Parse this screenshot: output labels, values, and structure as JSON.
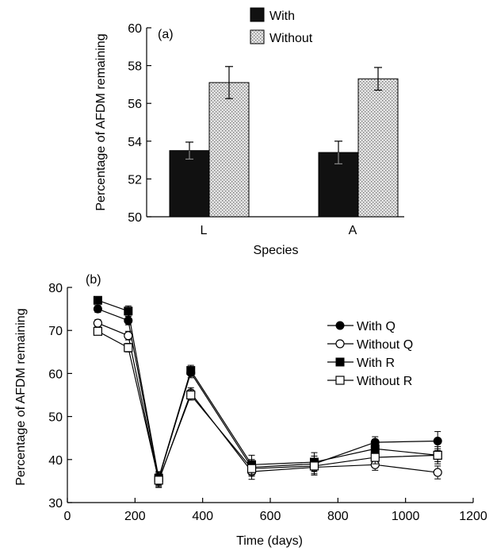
{
  "chart_data": [
    {
      "type": "bar",
      "panel_label": "(a)",
      "xlabel": "Species",
      "ylabel": "Percentage of AFDM remaining",
      "categories": [
        "L",
        "A"
      ],
      "ylim": [
        50,
        60
      ],
      "yticks": [
        50,
        52,
        54,
        56,
        58,
        60
      ],
      "legend_position": "top-center",
      "series": [
        {
          "name": "With",
          "values": [
            53.5,
            53.4
          ],
          "errors": [
            0.45,
            0.6
          ],
          "color": "#111111",
          "pattern": "solid"
        },
        {
          "name": "Without",
          "values": [
            57.1,
            57.3
          ],
          "errors": [
            0.85,
            0.6
          ],
          "color": "#d8d8d8",
          "pattern": "dotted"
        }
      ]
    },
    {
      "type": "line",
      "panel_label": "(b)",
      "xlabel": "Time (days)",
      "ylabel": "Percentage of AFDM remaining",
      "xlim": [
        0,
        1200
      ],
      "ylim": [
        30,
        80
      ],
      "xticks": [
        0,
        200,
        400,
        600,
        800,
        1000,
        1200
      ],
      "yticks": [
        30,
        40,
        50,
        60,
        70,
        80
      ],
      "legend_position": "right",
      "series": [
        {
          "name": "With Q",
          "marker": "filled-circle",
          "x": [
            90,
            180,
            270,
            365,
            545,
            730,
            910,
            1095
          ],
          "y": [
            75,
            72.3,
            35.5,
            60.2,
            38.2,
            39.0,
            44.0,
            44.3
          ],
          "err": [
            0.8,
            1.0,
            1.5,
            1.2,
            1.8,
            1.8,
            1.3,
            2.2
          ]
        },
        {
          "name": "Without Q",
          "marker": "open-circle",
          "x": [
            90,
            180,
            270,
            365,
            545,
            730,
            910,
            1095
          ],
          "y": [
            71.7,
            68.8,
            35.0,
            55.5,
            37.2,
            38.2,
            38.8,
            37.0
          ],
          "err": [
            0.8,
            1.0,
            1.5,
            1.2,
            1.8,
            1.8,
            1.3,
            1.5
          ]
        },
        {
          "name": "With R",
          "marker": "filled-square",
          "x": [
            90,
            180,
            270,
            365,
            545,
            730,
            910,
            1095
          ],
          "y": [
            77,
            74.5,
            35.7,
            60.7,
            38.8,
            39.4,
            42.5,
            41.0
          ],
          "err": [
            0.8,
            1.2,
            1.5,
            1.2,
            2.2,
            2.2,
            2.2,
            2.0
          ]
        },
        {
          "name": "Without R",
          "marker": "open-square",
          "x": [
            90,
            180,
            270,
            365,
            545,
            730,
            910,
            1095
          ],
          "y": [
            69.8,
            66.0,
            35.2,
            55.0,
            37.9,
            38.5,
            40.5,
            41.0
          ],
          "err": [
            0.8,
            1.0,
            1.5,
            1.2,
            1.8,
            1.8,
            1.5,
            1.5
          ]
        }
      ]
    }
  ]
}
